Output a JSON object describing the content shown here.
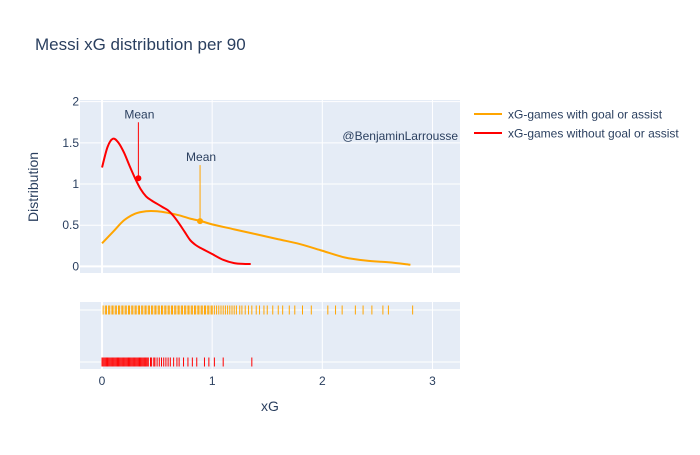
{
  "chart_data": {
    "type": "line",
    "title": "Messi xG distribution per 90",
    "xlabel": "xG",
    "ylabel": "Distribution",
    "xlim": [
      -0.2,
      3.25
    ],
    "ylim": [
      -0.08,
      2.02
    ],
    "x_ticks": [
      0,
      1,
      2,
      3
    ],
    "y_ticks": [
      0,
      0.5,
      1,
      1.5,
      2
    ],
    "x_tick_labels": [
      "0",
      "1",
      "2",
      "3"
    ],
    "y_tick_labels": [
      "0",
      "0.5",
      "1",
      "1.5",
      "2"
    ],
    "grid": true,
    "legend_position": "top-right",
    "watermark": "@BenjaminLarrousse",
    "series": [
      {
        "name": "xG-games with goal or assist",
        "color": "#FFA500",
        "x": [
          0,
          0.1,
          0.2,
          0.3,
          0.4,
          0.5,
          0.6,
          0.7,
          0.8,
          0.9,
          1.0,
          1.2,
          1.4,
          1.6,
          1.8,
          2.0,
          2.2,
          2.4,
          2.6,
          2.8
        ],
        "y": [
          0.28,
          0.42,
          0.56,
          0.64,
          0.67,
          0.67,
          0.65,
          0.62,
          0.58,
          0.55,
          0.51,
          0.45,
          0.39,
          0.33,
          0.27,
          0.19,
          0.11,
          0.07,
          0.05,
          0.02
        ],
        "mean": 0.89,
        "mean_density": 0.55,
        "rug": [
          0.01,
          0.03,
          0.04,
          0.06,
          0.07,
          0.09,
          0.1,
          0.12,
          0.13,
          0.15,
          0.16,
          0.18,
          0.19,
          0.21,
          0.22,
          0.24,
          0.25,
          0.27,
          0.28,
          0.3,
          0.31,
          0.33,
          0.34,
          0.36,
          0.37,
          0.39,
          0.4,
          0.42,
          0.43,
          0.45,
          0.46,
          0.48,
          0.49,
          0.51,
          0.52,
          0.54,
          0.55,
          0.57,
          0.58,
          0.6,
          0.61,
          0.63,
          0.64,
          0.66,
          0.67,
          0.69,
          0.7,
          0.72,
          0.73,
          0.75,
          0.76,
          0.78,
          0.79,
          0.81,
          0.82,
          0.84,
          0.85,
          0.87,
          0.88,
          0.9,
          0.91,
          0.93,
          0.94,
          0.96,
          0.97,
          0.99,
          1.0,
          1.02,
          1.04,
          1.06,
          1.08,
          1.1,
          1.12,
          1.14,
          1.16,
          1.18,
          1.2,
          1.22,
          1.25,
          1.27,
          1.3,
          1.33,
          1.36,
          1.4,
          1.43,
          1.47,
          1.5,
          1.55,
          1.6,
          1.64,
          1.7,
          1.75,
          1.82,
          1.9,
          2.05,
          2.12,
          2.18,
          2.3,
          2.37,
          2.45,
          2.55,
          2.6,
          2.82
        ]
      },
      {
        "name": "xG-games without goal or assist",
        "color": "#FF0000",
        "x": [
          0,
          0.05,
          0.1,
          0.15,
          0.2,
          0.25,
          0.3,
          0.35,
          0.4,
          0.45,
          0.5,
          0.55,
          0.6,
          0.65,
          0.7,
          0.75,
          0.8,
          0.85,
          0.9,
          1.0,
          1.1,
          1.2,
          1.3,
          1.35
        ],
        "y": [
          1.2,
          1.45,
          1.55,
          1.5,
          1.38,
          1.22,
          1.07,
          0.94,
          0.85,
          0.8,
          0.76,
          0.72,
          0.68,
          0.61,
          0.52,
          0.42,
          0.32,
          0.26,
          0.22,
          0.15,
          0.08,
          0.04,
          0.03,
          0.03
        ],
        "mean": 0.33,
        "mean_density": 1.07,
        "rug": [
          0.0,
          0.01,
          0.02,
          0.03,
          0.04,
          0.05,
          0.06,
          0.07,
          0.08,
          0.09,
          0.1,
          0.11,
          0.12,
          0.13,
          0.14,
          0.15,
          0.16,
          0.17,
          0.18,
          0.19,
          0.2,
          0.21,
          0.22,
          0.23,
          0.24,
          0.25,
          0.26,
          0.27,
          0.28,
          0.29,
          0.3,
          0.31,
          0.32,
          0.33,
          0.34,
          0.35,
          0.36,
          0.37,
          0.38,
          0.39,
          0.4,
          0.41,
          0.42,
          0.44,
          0.45,
          0.47,
          0.48,
          0.5,
          0.52,
          0.54,
          0.56,
          0.58,
          0.6,
          0.62,
          0.65,
          0.68,
          0.7,
          0.74,
          0.78,
          0.82,
          0.86,
          0.93,
          0.97,
          1.02,
          1.1,
          1.36
        ]
      }
    ],
    "annotations": [
      {
        "text": "Mean",
        "series": 1
      },
      {
        "text": "Mean",
        "series": 0
      }
    ]
  }
}
